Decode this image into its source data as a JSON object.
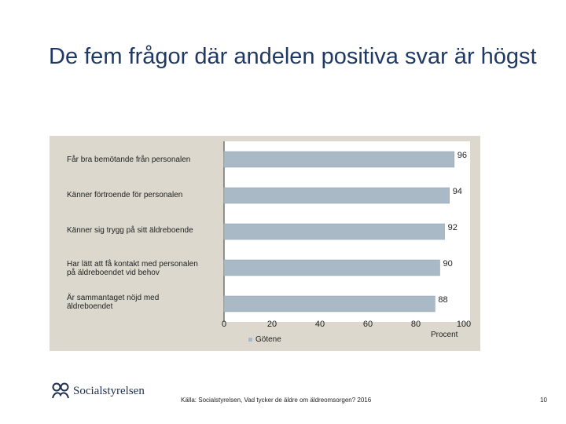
{
  "slide": {
    "title": "De fem frågor där andelen positiva svar är högst",
    "source": "Källa: Socialstyrelsen, Vad tycker de äldre om äldreomsorgen? 2016",
    "page_number": "10",
    "logo_text": "Socialstyrelsen"
  },
  "chart_data": {
    "type": "bar",
    "orientation": "horizontal",
    "categories": [
      "Får bra bemötande från personalen",
      "Känner förtroende för personalen",
      "Känner sig trygg på sitt äldreboende",
      "Har lätt att få kontakt med personalen på äldreboendet vid behov",
      "Är sammantaget nöjd med äldreboendet"
    ],
    "category_lines": [
      [
        "Får bra bemötande från personalen"
      ],
      [
        "Känner förtroende för personalen"
      ],
      [
        "Känner sig trygg på sitt äldreboende"
      ],
      [
        "Har lätt att få kontakt med personalen",
        "på äldreboendet vid behov"
      ],
      [
        "Är sammantaget nöjd med",
        "äldreboendet"
      ]
    ],
    "series": [
      {
        "name": "Götene",
        "values": [
          96,
          94,
          92,
          90,
          88
        ],
        "color": "#a9b9c6"
      }
    ],
    "xlim": [
      0,
      100
    ],
    "xticks": [
      "0",
      "20",
      "40",
      "60",
      "80",
      "100"
    ],
    "xlabel": "Procent",
    "legend_position": "bottom",
    "panel_color": "#dcd8cd"
  }
}
